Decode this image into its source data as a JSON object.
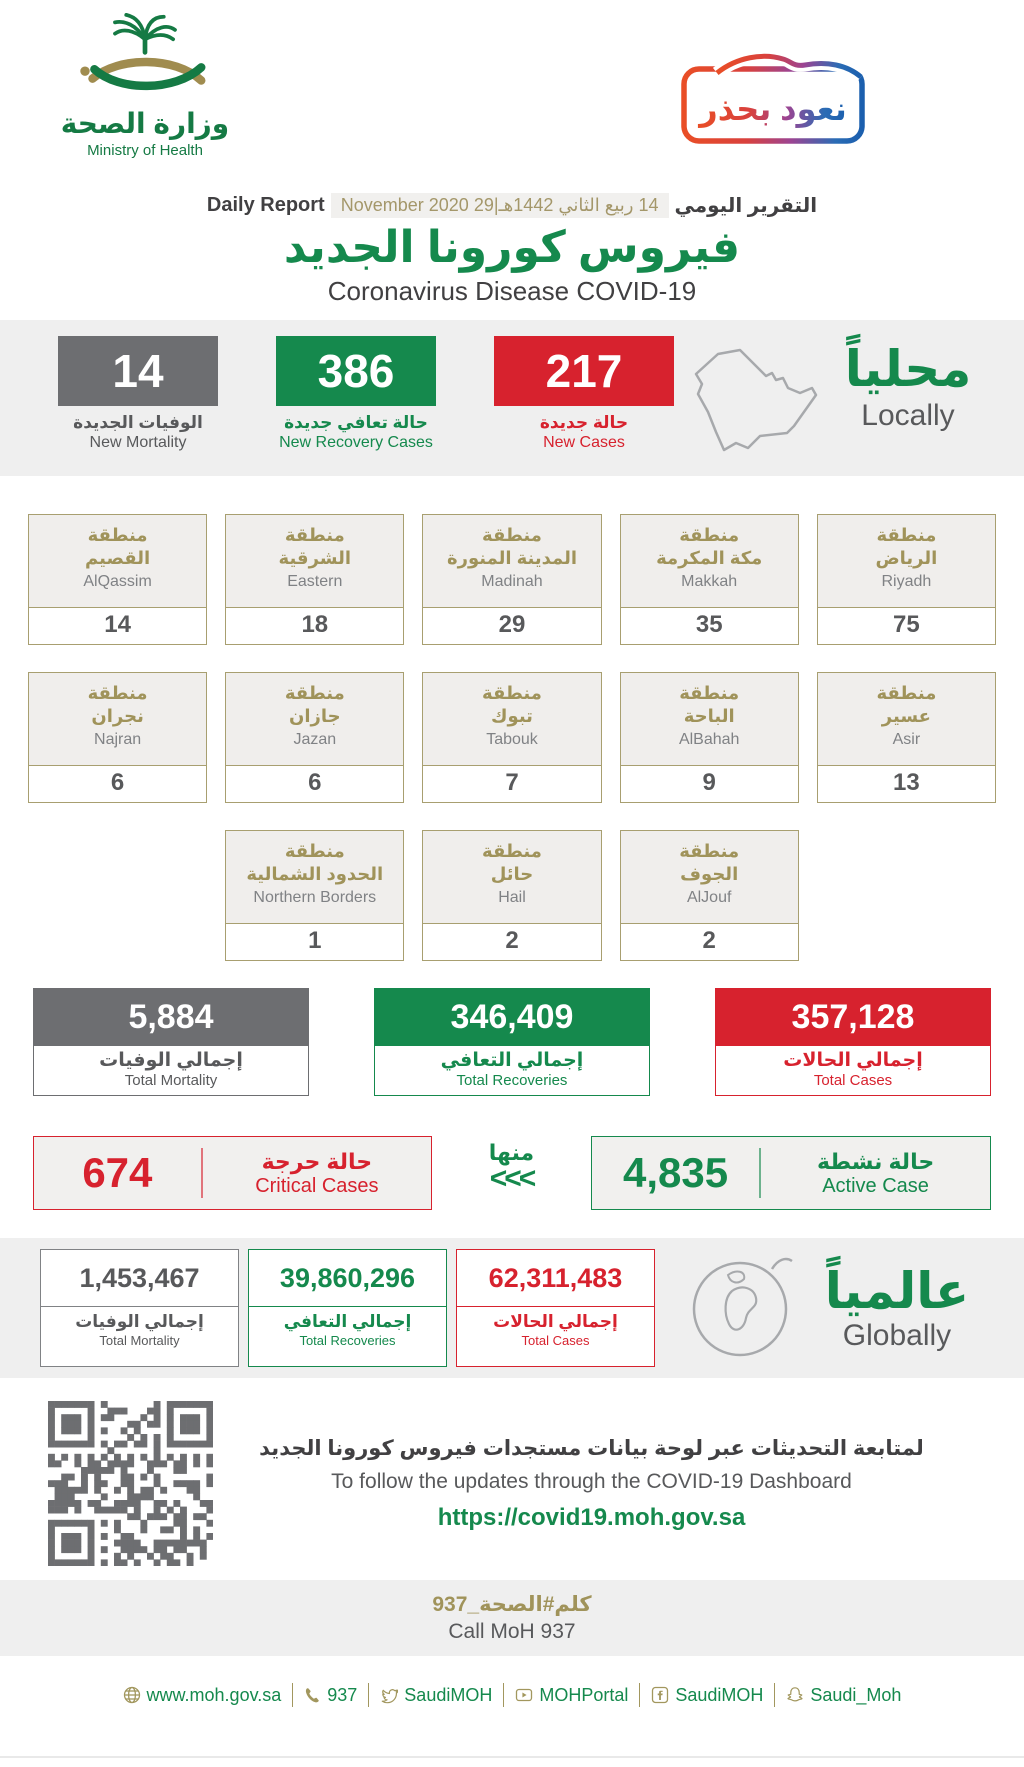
{
  "colors": {
    "green": "#15894d",
    "red": "#d7222e",
    "gray": "#6d6e71",
    "tan": "#a0935a",
    "band": "#efefef"
  },
  "header": {
    "logo_ar": "وزارة الصحة",
    "logo_en": "Ministry of Health",
    "badge_text": "نعود بحذر",
    "daily_report_en": "Daily Report",
    "daily_report_ar": "التقرير اليومي",
    "date_combined": "14 ربيع الثاني 1442هـ|29 November 2020",
    "title_ar": "فيروس كورونا الجديد",
    "title_en": "Coronavirus Disease COVID-19"
  },
  "locally": {
    "label_ar": "محلياً",
    "label_en": "Locally",
    "stats": [
      {
        "value": "14",
        "label_ar": "الوفيات الجديدة",
        "label_en": "New Mortality"
      },
      {
        "value": "386",
        "label_ar": "حالة تعافي جديدة",
        "label_en": "New Recovery Cases"
      },
      {
        "value": "217",
        "label_ar": "حالة جديدة",
        "label_en": "New Cases"
      }
    ]
  },
  "regions": {
    "prefix_ar": "منطقة",
    "rows": [
      [
        {
          "ar": "القصيم",
          "en": "AlQassim",
          "value": "14"
        },
        {
          "ar": "الشرقية",
          "en": "Eastern",
          "value": "18"
        },
        {
          "ar": "المدينة المنورة",
          "en": "Madinah",
          "value": "29"
        },
        {
          "ar": "مكة المكرمة",
          "en": "Makkah",
          "value": "35"
        },
        {
          "ar": "الرياض",
          "en": "Riyadh",
          "value": "75"
        }
      ],
      [
        {
          "ar": "نجران",
          "en": "Najran",
          "value": "6"
        },
        {
          "ar": "جازان",
          "en": "Jazan",
          "value": "6"
        },
        {
          "ar": "تبوك",
          "en": "Tabouk",
          "value": "7"
        },
        {
          "ar": "الباحة",
          "en": "AlBahah",
          "value": "9"
        },
        {
          "ar": "عسير",
          "en": "Asir",
          "value": "13"
        }
      ],
      [
        {
          "ar": "الحدود الشمالية",
          "en": "Northern Borders",
          "value": "1"
        },
        {
          "ar": "حائل",
          "en": "Hail",
          "value": "2"
        },
        {
          "ar": "الجوف",
          "en": "AlJouf",
          "value": "2"
        }
      ]
    ]
  },
  "totals": [
    {
      "value": "5,884",
      "label_ar": "إجمالي الوفيات",
      "label_en": "Total Mortality"
    },
    {
      "value": "346,409",
      "label_ar": "إجمالي التعافي",
      "label_en": "Total Recoveries"
    },
    {
      "value": "357,128",
      "label_ar": "إجمالي الحالات",
      "label_en": "Total Cases"
    }
  ],
  "critical_active": {
    "minha_ar": "منها",
    "chevrons": "<<<",
    "critical": {
      "value": "674",
      "label_ar": "حالة حرجة",
      "label_en": "Critical Cases"
    },
    "active": {
      "value": "4,835",
      "label_ar": "حالة نشطة",
      "label_en": "Active Case"
    }
  },
  "globally": {
    "label_ar": "عالمياً",
    "label_en": "Globally",
    "stats": [
      {
        "value": "1,453,467",
        "label_ar": "إجمالي الوفيات",
        "label_en": "Total Mortality"
      },
      {
        "value": "39,860,296",
        "label_ar": "إجمالي التعافي",
        "label_en": "Total Recoveries"
      },
      {
        "value": "62,311,483",
        "label_ar": "إجمالي الحالات",
        "label_en": "Total Cases"
      }
    ]
  },
  "dashboard": {
    "text_ar": "لمتابعة التحديثات عبر لوحة بيانات مستجدات فيروس كورونا الجديد",
    "text_en": "To follow the updates through the COVID-19 Dashboard",
    "url": "https://covid19.moh.gov.sa"
  },
  "call": {
    "ar": "كلم#الصحة_937",
    "en": "Call MoH 937"
  },
  "footer": {
    "items": [
      {
        "icon": "globe-icon",
        "text": "www.moh.gov.sa"
      },
      {
        "icon": "phone-icon",
        "text": "937"
      },
      {
        "icon": "twitter-icon",
        "text": "SaudiMOH"
      },
      {
        "icon": "youtube-icon",
        "text": "MOHPortal"
      },
      {
        "icon": "facebook-icon",
        "text": "SaudiMOH"
      },
      {
        "icon": "snapchat-icon",
        "text": "Saudi_Moh"
      }
    ]
  }
}
